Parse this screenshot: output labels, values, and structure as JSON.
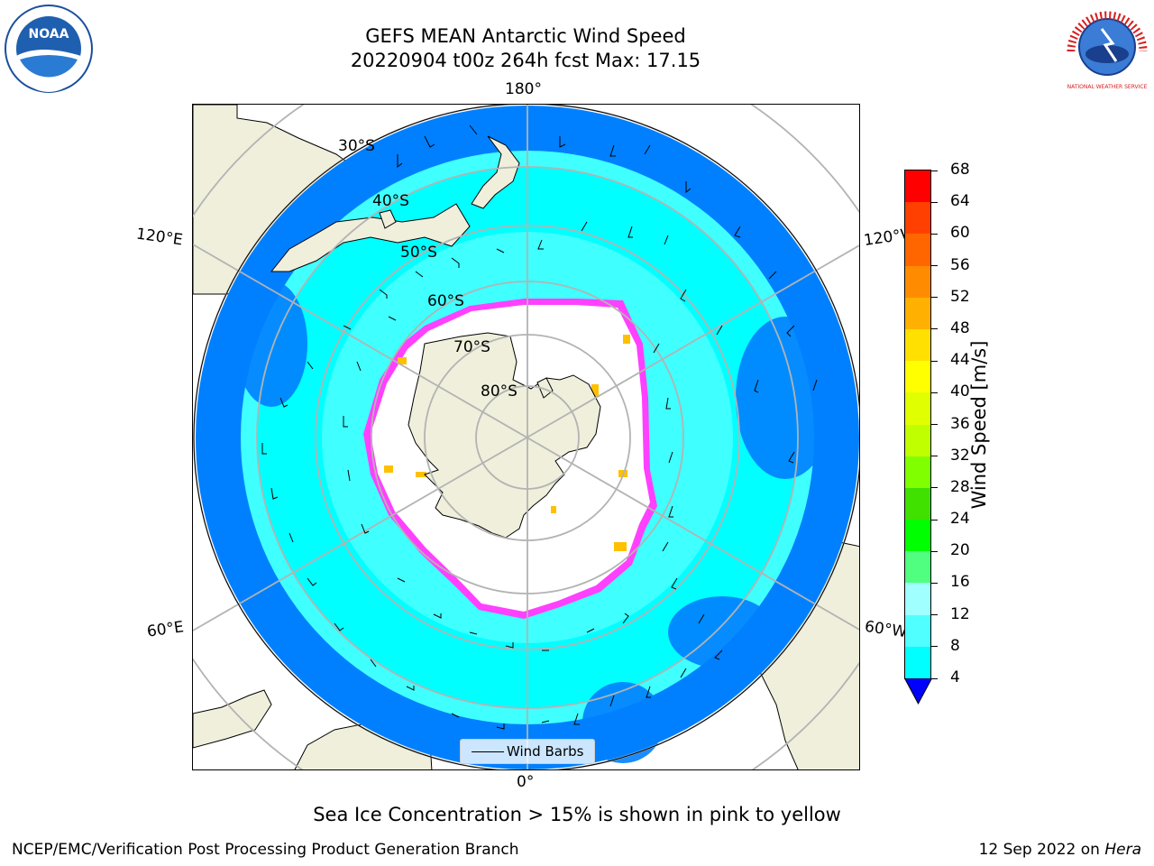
{
  "header": {
    "title_line1": "GEFS MEAN Antarctic Wind Speed",
    "title_line2": "20220904 t00z 264h fcst   Max: 17.15"
  },
  "logos": {
    "noaa_text": "NOAA",
    "nws_text": "NATIONAL WEATHER SERVICE"
  },
  "map": {
    "projection": "south-polar-stereographic",
    "lon_labels": {
      "top": "180°",
      "left_upper": "120°E",
      "right_upper": "120°W",
      "left_lower": "60°E",
      "right_lower": "60°W",
      "bottom": "0°"
    },
    "lat_labels": [
      "30°S",
      "40°S",
      "50°S",
      "60°S",
      "70°S",
      "80°S"
    ],
    "colors": {
      "land": "#efefdc",
      "ocean_4_8": "#0080ff",
      "ocean_8_12": "#00ffff",
      "ocean_12_16": "#40ffff",
      "ice_edge": "#ff40ff",
      "ice_inner": "#ffc000",
      "grid": "#b3b3b3"
    },
    "legend_label": "Wind Barbs"
  },
  "colorbar": {
    "label": "Wind Speed [m/s]",
    "ticks": [
      "68",
      "64",
      "60",
      "56",
      "52",
      "48",
      "44",
      "40",
      "36",
      "32",
      "28",
      "24",
      "20",
      "16",
      "12",
      "8",
      "4"
    ],
    "colors": [
      "#ff0000",
      "#ff4000",
      "#ff6600",
      "#ff8c00",
      "#ffb000",
      "#ffe000",
      "#ffff00",
      "#e0ff00",
      "#c0ff00",
      "#80ff00",
      "#40e000",
      "#00ff00",
      "#50ff80",
      "#a0ffff",
      "#50ffff",
      "#00ffff",
      "#0080ff"
    ],
    "extend_color": "#0000ff"
  },
  "caption": "Sea Ice Concentration > 15% is shown in pink to yellow",
  "footer": {
    "left": "NCEP/EMC/Verification Post Processing Product Generation Branch",
    "right_date": "12 Sep 2022 on",
    "right_machine": "Hera"
  }
}
